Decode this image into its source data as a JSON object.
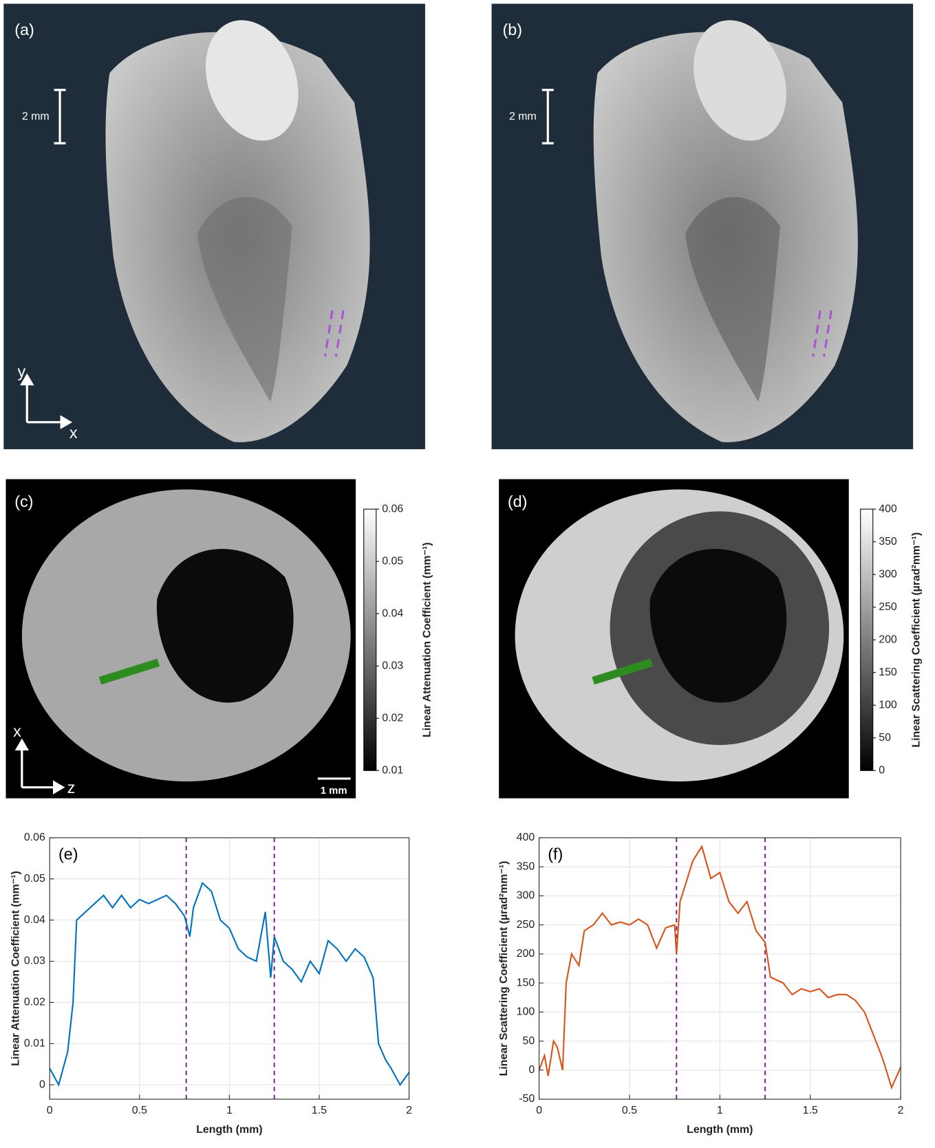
{
  "images": [
    {
      "label": "(a)",
      "scale_bar": "2 mm",
      "axes": [
        "y",
        "x"
      ]
    },
    {
      "label": "(b)",
      "scale_bar": "2 mm"
    },
    {
      "label": "(c)",
      "scale_bar": "1 mm",
      "axes": [
        "x",
        "z"
      ],
      "colorbar": {
        "label": "Linear Attenuation Coefficient (mm⁻¹)",
        "lim": [
          0.01,
          0.06
        ],
        "ticks": [
          0.01,
          0.02,
          0.03,
          0.04,
          0.05,
          0.06
        ]
      }
    },
    {
      "label": "(d)",
      "colorbar": {
        "label": "Linear Scattering Coefficient (µrad²mm⁻¹)",
        "lim": [
          0,
          400
        ],
        "ticks": [
          0,
          50,
          100,
          150,
          200,
          250,
          300,
          350,
          400
        ]
      }
    }
  ],
  "chart_data": [
    {
      "type": "line",
      "panel_label": "(e)",
      "x_label": "Length (mm)",
      "y_label": "Linear Attenuation Coefficient (mm⁻¹)",
      "color": "#0072bd",
      "grid": true,
      "vlines": [
        0.76,
        1.25
      ],
      "vline_color": "#7e2f8e",
      "xlim": [
        0,
        2
      ],
      "ylim": [
        -0.0035,
        0.06
      ],
      "xticks": [
        0,
        0.5,
        1,
        1.5,
        2
      ],
      "yticks": [
        0,
        0.01,
        0.02,
        0.03,
        0.04,
        0.05,
        0.06
      ],
      "x": [
        0,
        0.05,
        0.1,
        0.13,
        0.15,
        0.2,
        0.25,
        0.3,
        0.35,
        0.4,
        0.45,
        0.5,
        0.55,
        0.6,
        0.65,
        0.7,
        0.75,
        0.78,
        0.8,
        0.85,
        0.9,
        0.95,
        1.0,
        1.05,
        1.1,
        1.15,
        1.2,
        1.23,
        1.25,
        1.3,
        1.35,
        1.4,
        1.45,
        1.5,
        1.55,
        1.6,
        1.65,
        1.7,
        1.75,
        1.8,
        1.83,
        1.87,
        1.9,
        1.95,
        2.0
      ],
      "values": [
        0.004,
        0.0,
        0.008,
        0.02,
        0.04,
        0.042,
        0.044,
        0.046,
        0.043,
        0.046,
        0.043,
        0.045,
        0.044,
        0.045,
        0.046,
        0.044,
        0.041,
        0.036,
        0.043,
        0.049,
        0.047,
        0.04,
        0.038,
        0.033,
        0.031,
        0.03,
        0.042,
        0.026,
        0.036,
        0.03,
        0.028,
        0.025,
        0.03,
        0.027,
        0.035,
        0.033,
        0.03,
        0.033,
        0.031,
        0.026,
        0.01,
        0.006,
        0.004,
        0.0,
        0.003
      ]
    },
    {
      "type": "line",
      "panel_label": "(f)",
      "x_label": "Length (mm)",
      "y_label": "Linear Scattering Coefficient (µrad²mm⁻¹)",
      "color": "#d95319",
      "grid": true,
      "vlines": [
        0.76,
        1.25
      ],
      "vline_color": "#7e2f8e",
      "xlim": [
        0,
        2
      ],
      "ylim": [
        -50,
        400
      ],
      "xticks": [
        0,
        0.5,
        1,
        1.5,
        2
      ],
      "yticks": [
        -50,
        0,
        50,
        100,
        150,
        200,
        250,
        300,
        350,
        400
      ],
      "x": [
        0,
        0.03,
        0.05,
        0.08,
        0.1,
        0.13,
        0.15,
        0.18,
        0.22,
        0.25,
        0.3,
        0.35,
        0.4,
        0.45,
        0.5,
        0.55,
        0.6,
        0.65,
        0.7,
        0.75,
        0.76,
        0.78,
        0.8,
        0.85,
        0.9,
        0.95,
        1.0,
        1.05,
        1.1,
        1.15,
        1.2,
        1.25,
        1.28,
        1.35,
        1.4,
        1.45,
        1.5,
        1.55,
        1.6,
        1.65,
        1.7,
        1.75,
        1.8,
        1.85,
        1.9,
        1.95,
        2.0
      ],
      "values": [
        0,
        25,
        -10,
        50,
        40,
        0,
        150,
        200,
        180,
        240,
        250,
        270,
        250,
        255,
        250,
        260,
        250,
        210,
        245,
        250,
        200,
        290,
        310,
        360,
        385,
        330,
        340,
        290,
        270,
        290,
        240,
        220,
        160,
        150,
        130,
        140,
        135,
        140,
        125,
        130,
        130,
        120,
        100,
        60,
        20,
        -30,
        5
      ]
    }
  ]
}
